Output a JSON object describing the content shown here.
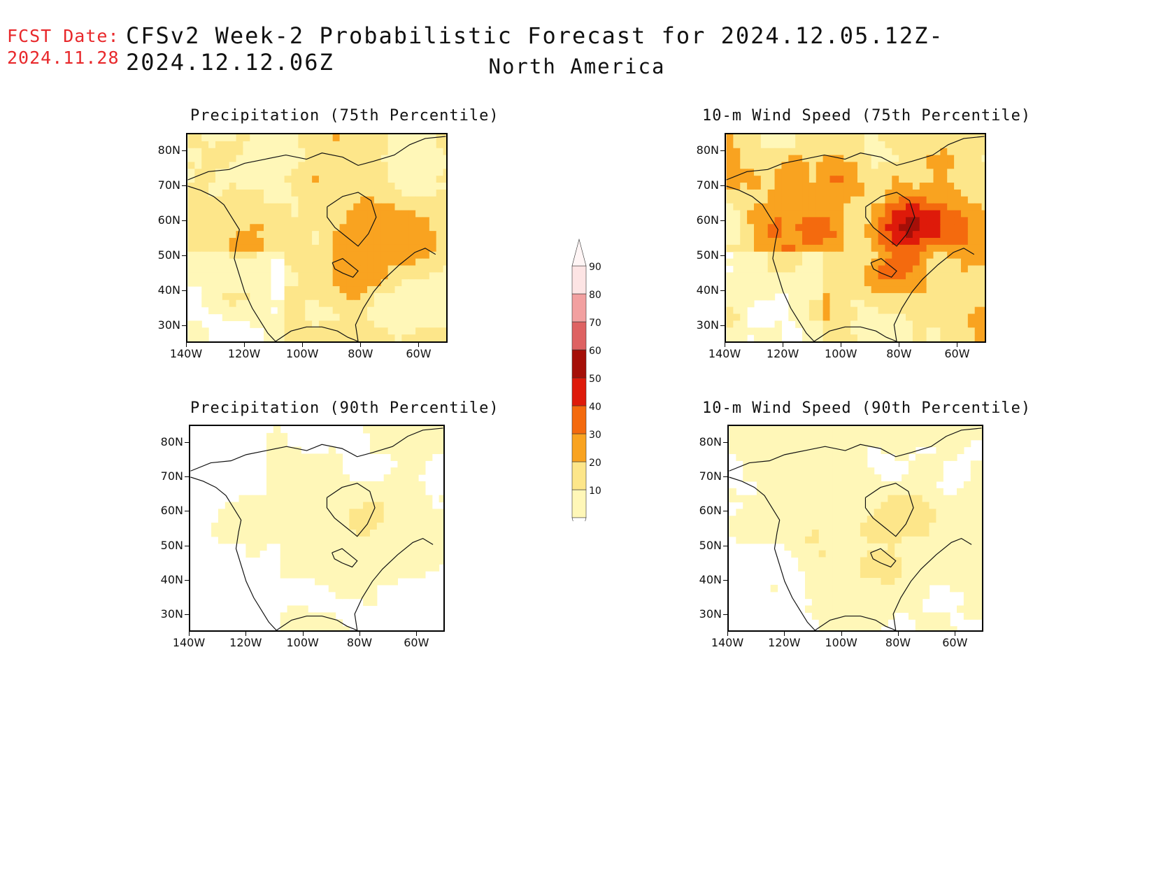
{
  "header": {
    "fcst_label": "FCST Date:",
    "fcst_date": "2024.11.28",
    "title": "CFSv2 Week-2 Probabilistic Forecast for 2024.12.05.12Z-2024.12.12.06Z",
    "subtitle": "North America"
  },
  "panels": [
    {
      "id": "p75",
      "title": "Precipitation (75th Percentile)",
      "intensity": "high"
    },
    {
      "id": "w75",
      "title": "10-m Wind Speed (75th Percentile)",
      "intensity": "highest"
    },
    {
      "id": "p90",
      "title": "Precipitation (90th Percentile)",
      "intensity": "low"
    },
    {
      "id": "w90",
      "title": "10-m Wind Speed (90th Percentile)",
      "intensity": "medium"
    }
  ],
  "axes": {
    "lat_labels": [
      "80N",
      "70N",
      "60N",
      "50N",
      "40N",
      "30N"
    ],
    "lon_labels": [
      "140W",
      "120W",
      "100W",
      "80W",
      "60W"
    ]
  },
  "colorbar": {
    "levels": [
      "10",
      "20",
      "30",
      "40",
      "50",
      "60",
      "70",
      "80",
      "90"
    ],
    "colors": [
      "#fff7b8",
      "#fde68a",
      "#f9a320",
      "#f46a0e",
      "#de1a0a",
      "#a50f08",
      "#de6262",
      "#f2a0a0",
      "#fde4e4"
    ]
  }
}
